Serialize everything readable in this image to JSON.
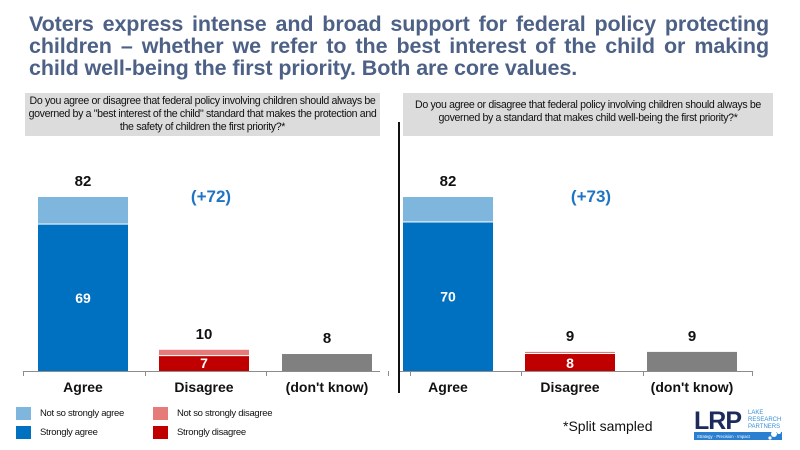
{
  "title": "Voters express intense and broad support for federal policy protecting children – whether we refer to the best interest of the child or making child well-being the first priority. Both are core values.",
  "colors": {
    "title": "#4d6187",
    "strongly_agree": "#0070c0",
    "not_so_strongly_agree": "#7fb6dd",
    "strongly_disagree": "#c00000",
    "not_so_strongly_disagree": "#e67c7a",
    "dont_know": "#808080",
    "margin_label": "#1f74c4"
  },
  "legend": [
    {
      "key": "not_so_strongly_agree",
      "label": "Not so strongly agree"
    },
    {
      "key": "strongly_agree",
      "label": "Strongly agree"
    },
    {
      "key": "not_so_strongly_disagree",
      "label": "Not so strongly disagree"
    },
    {
      "key": "strongly_disagree",
      "label": "Strongly disagree"
    }
  ],
  "footnote": "*Split sampled",
  "logo": {
    "mark": "LRP",
    "name_lines": [
      "LAKE",
      "RESEARCH",
      "PARTNERS"
    ],
    "tagline": "Strategy · Precision · Impact"
  },
  "chart_data": [
    {
      "type": "bar",
      "stacked": true,
      "question": "Do you agree or disagree that federal policy involving children should always be governed by a \"best interest of the child\" standard that makes the protection and the safety of children the first priority?*",
      "categories": [
        "Agree",
        "Disagree",
        "(don't know)"
      ],
      "totals": [
        82,
        10,
        8
      ],
      "series": [
        {
          "name": "Strongly",
          "values": [
            69,
            7,
            null
          ]
        },
        {
          "name": "Not so strongly",
          "values": [
            13,
            3,
            null
          ]
        },
        {
          "name": "Don't know",
          "values": [
            null,
            null,
            8
          ]
        }
      ],
      "inner_labels": [
        "69",
        "7",
        ""
      ],
      "total_labels": [
        "82",
        "10",
        "8"
      ],
      "margin_label": "(+72)",
      "ylim": [
        0,
        100
      ]
    },
    {
      "type": "bar",
      "stacked": true,
      "question": "Do you agree or disagree that federal policy involving children should always be governed by a standard that makes child well-being the first priority?*",
      "categories": [
        "Agree",
        "Disagree",
        "(don't know)"
      ],
      "totals": [
        82,
        9,
        9
      ],
      "series": [
        {
          "name": "Strongly",
          "values": [
            70,
            8,
            null
          ]
        },
        {
          "name": "Not so strongly",
          "values": [
            12,
            1,
            null
          ]
        },
        {
          "name": "Don't know",
          "values": [
            null,
            null,
            9
          ]
        }
      ],
      "inner_labels": [
        "70",
        "8",
        ""
      ],
      "total_labels": [
        "82",
        "9",
        "9"
      ],
      "margin_label": "(+73)",
      "ylim": [
        0,
        100
      ]
    }
  ]
}
